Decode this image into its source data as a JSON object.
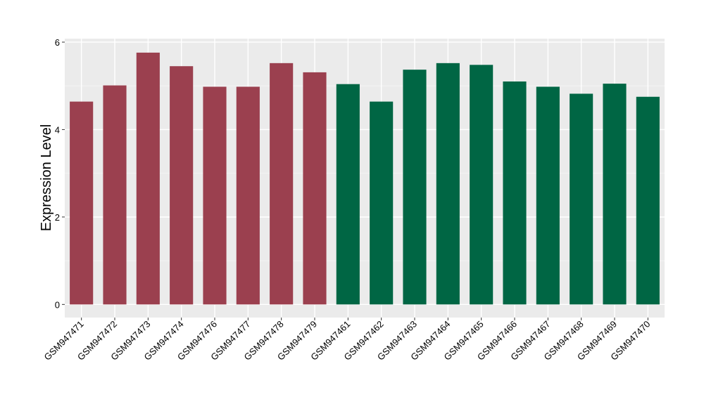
{
  "chart_data": {
    "type": "bar",
    "title": "",
    "xlabel": "",
    "ylabel": "Expression Level",
    "ylim": [
      -0.3,
      6.08
    ],
    "yticks": [
      0,
      2,
      4,
      6
    ],
    "grid": true,
    "categories": [
      "GSM947471",
      "GSM947472",
      "GSM947473",
      "GSM947474",
      "GSM947476",
      "GSM947477",
      "GSM947478",
      "GSM947479",
      "GSM947461",
      "GSM947462",
      "GSM947463",
      "GSM947464",
      "GSM947465",
      "GSM947466",
      "GSM947467",
      "GSM947468",
      "GSM947469",
      "GSM947470"
    ],
    "values": [
      4.64,
      5.01,
      5.76,
      5.45,
      4.98,
      4.98,
      5.52,
      5.31,
      5.04,
      4.64,
      5.37,
      5.52,
      5.48,
      5.1,
      4.98,
      4.82,
      5.05,
      4.75
    ],
    "bar_colors": [
      "#9b404f",
      "#9b404f",
      "#9b404f",
      "#9b404f",
      "#9b404f",
      "#9b404f",
      "#9b404f",
      "#9b404f",
      "#006644",
      "#006644",
      "#006644",
      "#006644",
      "#006644",
      "#006644",
      "#006644",
      "#006644",
      "#006644",
      "#006644"
    ]
  }
}
